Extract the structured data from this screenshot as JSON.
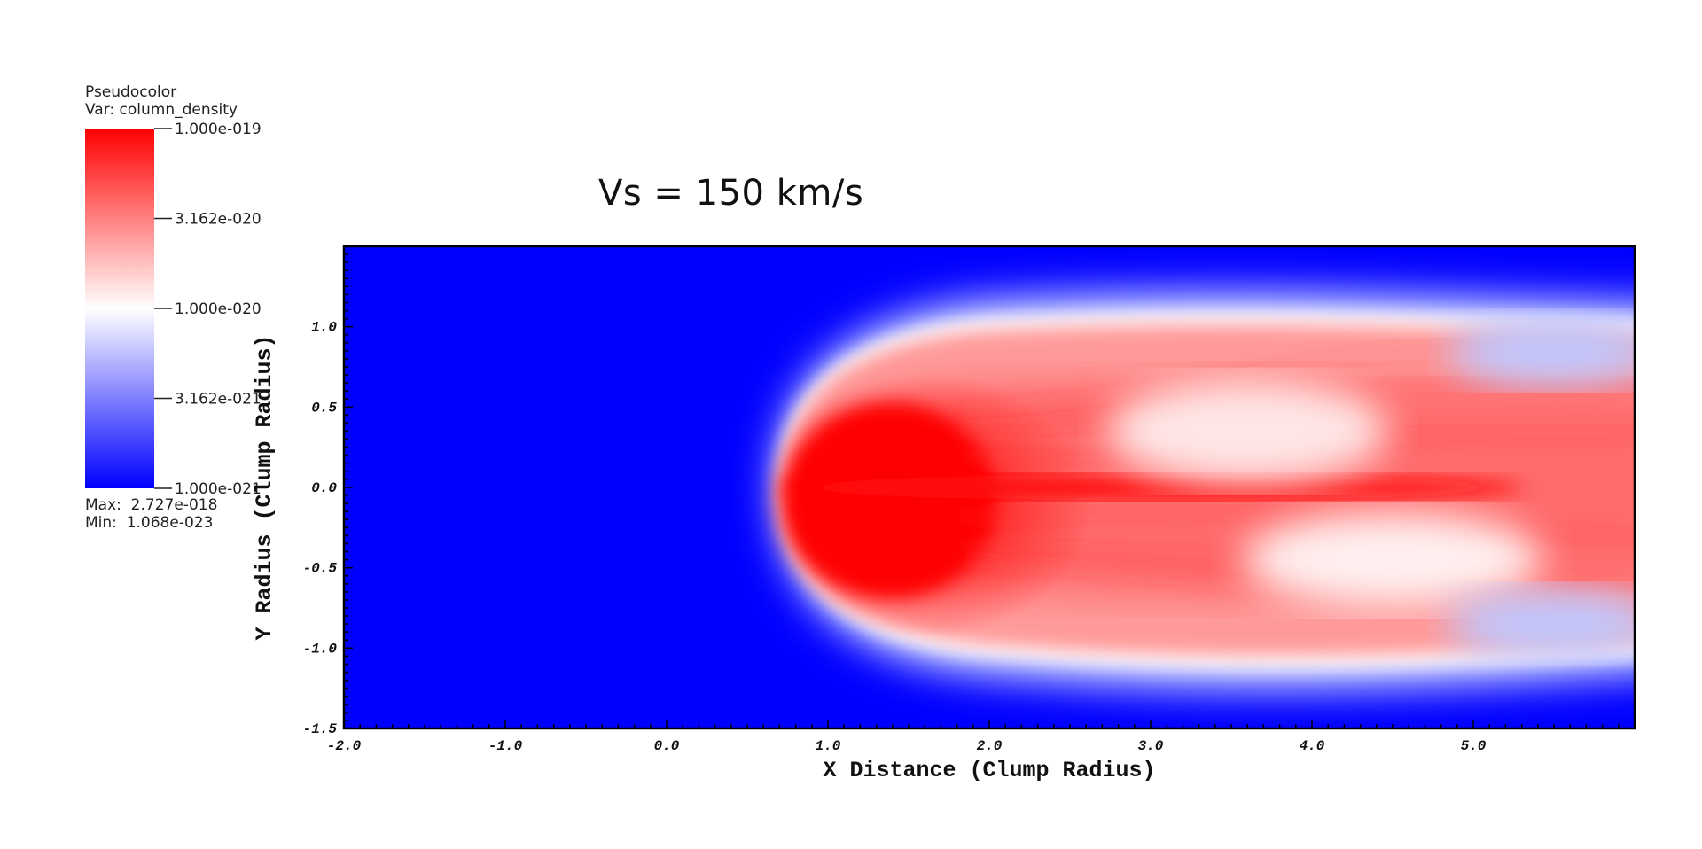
{
  "legend": {
    "title": "Pseudocolor",
    "var_label": "Var: column_density",
    "max_label": "Max:  2.727e-018",
    "min_label": "Min:  1.068e-023",
    "tick_labels": [
      "1.000e-019",
      "3.162e-020",
      "1.000e-020",
      "3.162e-021",
      "1.000e-021"
    ],
    "colors": {
      "high": "#ff0000",
      "mid": "#ffffff",
      "low": "#0000ff"
    }
  },
  "chart_data": {
    "type": "heatmap",
    "title": "Vs = 150 km/s",
    "xlabel": "X Distance (Clump Radius)",
    "ylabel": "Y Radius (Clump Radius)",
    "xlim": [
      -2.0,
      6.0
    ],
    "ylim": [
      -1.5,
      1.5
    ],
    "x_ticks": [
      "-2.0",
      "-1.0",
      "0.0",
      "1.0",
      "2.0",
      "3.0",
      "4.0",
      "5.0"
    ],
    "x_tick_values": [
      -2.0,
      -1.0,
      0.0,
      1.0,
      2.0,
      3.0,
      4.0,
      5.0
    ],
    "y_ticks": [
      "-1.5",
      "-1.0",
      "-0.5",
      "0.0",
      "0.5",
      "1.0"
    ],
    "y_tick_values": [
      -1.5,
      -1.0,
      -0.5,
      0.0,
      0.5,
      1.0
    ],
    "variable": "column_density",
    "color_scale": "log",
    "color_range": [
      1e-21,
      1e-19
    ],
    "background_color": "#0000ff",
    "feature": {
      "description_color": "#ff0000",
      "head_x": 0.7,
      "tail_x": 6.0,
      "half_width_y": 1.05,
      "core_x": 1.6
    }
  }
}
